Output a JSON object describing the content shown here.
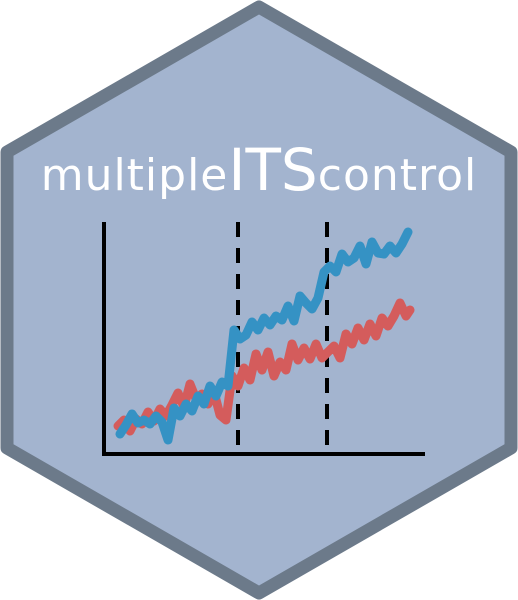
{
  "logo": {
    "title_parts": [
      "multiple",
      "ITS",
      "control"
    ],
    "colors": {
      "hex_fill": "#a3b4cf",
      "hex_border": "#6c7a8a",
      "title": "#ffffff",
      "axis": "#000000",
      "series_blue": "#3592c4",
      "series_red": "#d45c5c"
    },
    "icon": "interrupted-time-series-chart-icon"
  }
}
